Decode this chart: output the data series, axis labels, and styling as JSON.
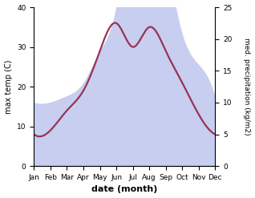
{
  "months": [
    "Jan",
    "Feb",
    "Mar",
    "Apr",
    "May",
    "Jun",
    "Jul",
    "Aug",
    "Sep",
    "Oct",
    "Nov",
    "Dec"
  ],
  "temp_max": [
    8,
    9,
    14,
    19,
    29,
    36,
    30,
    35,
    29,
    21,
    13,
    8
  ],
  "precipitation": [
    10,
    10,
    11,
    13,
    18,
    25,
    40,
    37,
    32,
    21,
    16,
    11
  ],
  "temp_ylim": [
    0,
    40
  ],
  "precip_ylim": [
    0,
    25
  ],
  "temp_color": "#993355",
  "fill_color": "#aab4e8",
  "fill_alpha": 0.65,
  "xlabel": "date (month)",
  "ylabel_left": "max temp (C)",
  "ylabel_right": "med. precipitation (kg/m2)",
  "bg_color": "#ffffff",
  "temp_linewidth": 1.6
}
